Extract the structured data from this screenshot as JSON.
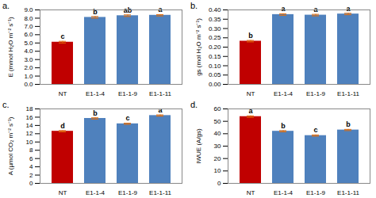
{
  "chart_data": [
    {
      "type": "bar",
      "title": "a.",
      "y_label": "E (mmol H₂O m⁻² s⁻¹)",
      "categories": [
        "NT",
        "E1-1-4",
        "E1-1-9",
        "E1-1-11"
      ],
      "values": [
        5.1,
        8.1,
        8.3,
        8.35
      ],
      "errors": [
        0.1,
        0.1,
        0.1,
        0.08
      ],
      "annotations": [
        "c",
        "b",
        "ab",
        "a"
      ],
      "colors": [
        "#c00000",
        "#4f81bd",
        "#4f81bd",
        "#4f81bd"
      ],
      "ylim": [
        0,
        9
      ],
      "yticks": [
        {
          "value": 0,
          "label": "0.0"
        },
        {
          "value": 1,
          "label": "1.0"
        },
        {
          "value": 2,
          "label": "2.0"
        },
        {
          "value": 3,
          "label": "3.0"
        },
        {
          "value": 4,
          "label": "4.0"
        },
        {
          "value": 5,
          "label": "5.0"
        },
        {
          "value": 6,
          "label": "6.0"
        },
        {
          "value": 7,
          "label": "7.0"
        },
        {
          "value": 8,
          "label": "8.0"
        },
        {
          "value": 9,
          "label": "9.0"
        }
      ],
      "grid": false
    },
    {
      "type": "bar",
      "title": "b.",
      "y_label": "gs (mol H₂O m⁻² s⁻¹)",
      "categories": [
        "NT",
        "E1-1-4",
        "E1-1-9",
        "E1-1-11"
      ],
      "values": [
        0.232,
        0.375,
        0.372,
        0.378
      ],
      "errors": [
        0.004,
        0.004,
        0.004,
        0.004
      ],
      "annotations": [
        "b",
        "a",
        "a",
        "a"
      ],
      "colors": [
        "#c00000",
        "#4f81bd",
        "#4f81bd",
        "#4f81bd"
      ],
      "ylim": [
        0,
        0.4
      ],
      "yticks": [
        {
          "value": 0,
          "label": "0.00"
        },
        {
          "value": 0.05,
          "label": "0.05"
        },
        {
          "value": 0.1,
          "label": "0.10"
        },
        {
          "value": 0.15,
          "label": "0.15"
        },
        {
          "value": 0.2,
          "label": "0.20"
        },
        {
          "value": 0.25,
          "label": "0.25"
        },
        {
          "value": 0.3,
          "label": "0.30"
        },
        {
          "value": 0.35,
          "label": "0.35"
        },
        {
          "value": 0.4,
          "label": "0.40"
        }
      ],
      "grid": false
    },
    {
      "type": "bar",
      "title": "c.",
      "y_label": "A (µmol CO₂ m⁻² s⁻¹)",
      "categories": [
        "NT",
        "E1-1-4",
        "E1-1-9",
        "E1-1-11"
      ],
      "values": [
        12.6,
        15.7,
        14.4,
        16.4
      ],
      "errors": [
        0.15,
        0.15,
        0.15,
        0.15
      ],
      "annotations": [
        "d",
        "b",
        "c",
        "a"
      ],
      "colors": [
        "#c00000",
        "#4f81bd",
        "#4f81bd",
        "#4f81bd"
      ],
      "ylim": [
        0,
        18
      ],
      "yticks": [
        0,
        2,
        4,
        6,
        8,
        10,
        12,
        14,
        16,
        18
      ],
      "grid": false
    },
    {
      "type": "bar",
      "title": "d.",
      "y_label": "IWUE (A/gs)",
      "categories": [
        "NT",
        "E1-1-4",
        "E1-1-9",
        "E1-1-11"
      ],
      "values": [
        53.8,
        42,
        38.5,
        43
      ],
      "errors": [
        0.6,
        0.5,
        0.5,
        0.5
      ],
      "annotations": [
        "a",
        "b",
        "c",
        "b"
      ],
      "colors": [
        "#c00000",
        "#4f81bd",
        "#4f81bd",
        "#4f81bd"
      ],
      "ylim": [
        0,
        60
      ],
      "yticks": [
        0,
        10,
        20,
        30,
        40,
        50,
        60
      ],
      "grid": false
    }
  ]
}
